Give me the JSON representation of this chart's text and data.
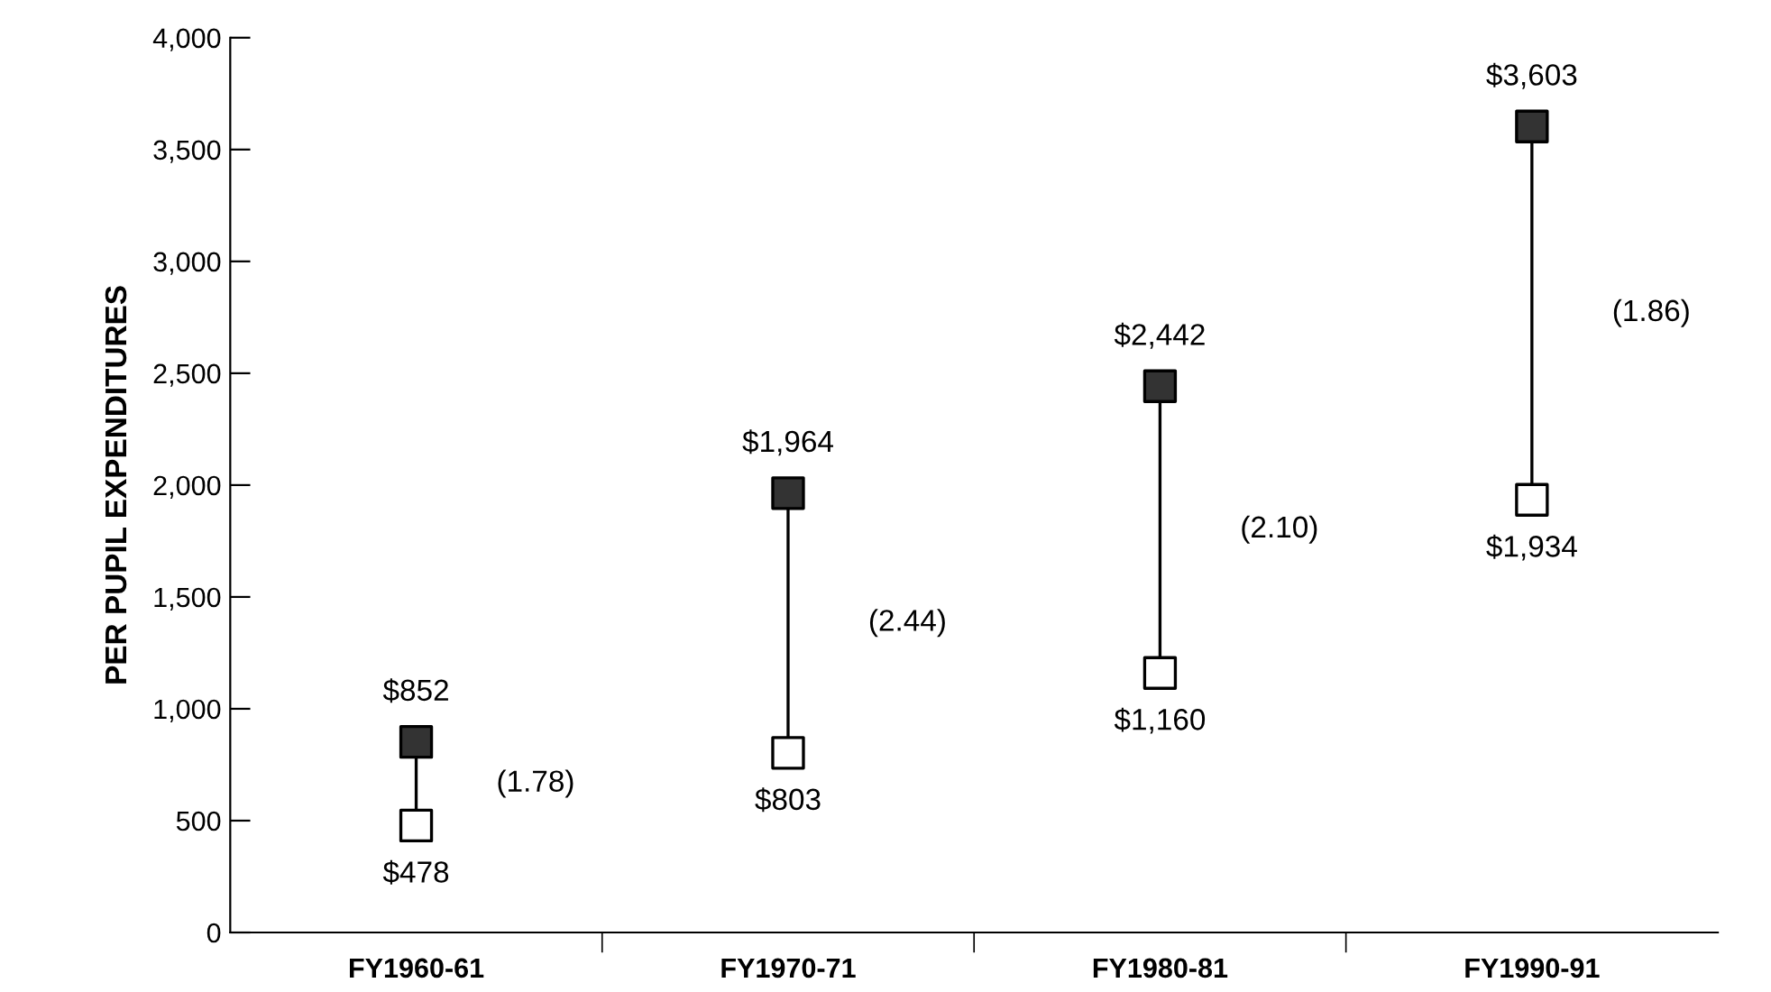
{
  "chart_data": {
    "type": "scatter",
    "ylabel": "PER PUPIL EXPENDITURES",
    "categories": [
      "FY1960-61",
      "FY1970-71",
      "FY1980-81",
      "FY1990-91"
    ],
    "series": [
      {
        "color": "#ffffff",
        "values": [
          478,
          803,
          1160,
          1934
        ],
        "value_labels": [
          "$478",
          "$803",
          "$1,160",
          "$1,934"
        ]
      },
      {
        "color": "#333333",
        "values": [
          852,
          1964,
          2442,
          3603
        ],
        "value_labels": [
          "$852",
          "$1,964",
          "$2,442",
          "$3,603"
        ]
      }
    ],
    "ylim": [
      0,
      4000
    ],
    "yticks": [
      0,
      500,
      {
        "value": 1000,
        "label": "1,000"
      },
      {
        "value": 1500,
        "label": "1,500"
      },
      {
        "value": 2000,
        "label": "2,000"
      },
      {
        "value": 2500,
        "label": "2,500"
      },
      {
        "value": 3000,
        "label": "3,000"
      },
      {
        "value": 3500,
        "label": "3,500"
      },
      {
        "value": 4000,
        "label": "4,000"
      }
    ],
    "annotations": [
      "(1.78)",
      "(2.44)",
      "(2.10)",
      "(1.86)"
    ],
    "marker": "square",
    "line_style": "solid",
    "grid": false,
    "legend": false
  }
}
